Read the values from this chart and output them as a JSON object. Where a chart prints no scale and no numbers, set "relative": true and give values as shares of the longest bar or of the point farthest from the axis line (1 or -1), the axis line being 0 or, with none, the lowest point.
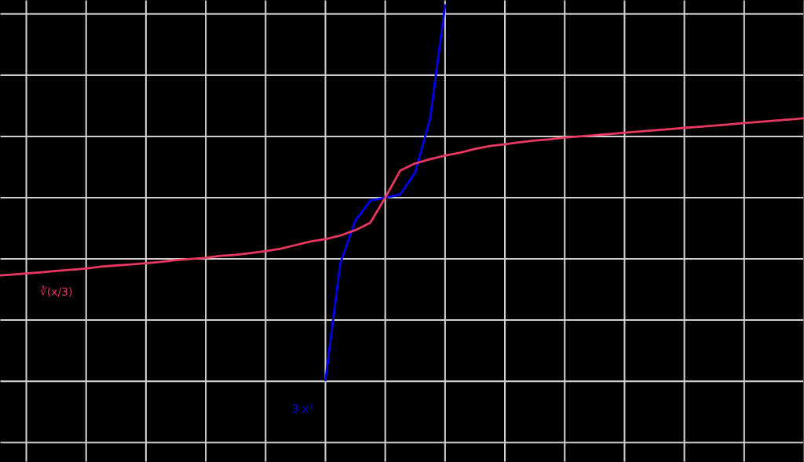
{
  "chart_data": {
    "type": "line",
    "relative": true,
    "categories": [
      null,
      null,
      null,
      null,
      null,
      null,
      null,
      null,
      null,
      null,
      null,
      null,
      null,
      null,
      null,
      null,
      null,
      null,
      null,
      null,
      null,
      null,
      null,
      null,
      null,
      null,
      null,
      null,
      null,
      null,
      null,
      null,
      null,
      null,
      null,
      null,
      null,
      null,
      null,
      null,
      null,
      null,
      null,
      null,
      null,
      null,
      null,
      null,
      null,
      null,
      null,
      null,
      null,
      null,
      null
    ],
    "series": [
      {
        "color": "#0000ee",
        "values": [
          null,
          null,
          null,
          null,
          null,
          null,
          null,
          null,
          null,
          null,
          null,
          null,
          null,
          null,
          null,
          null,
          null,
          null,
          null,
          null,
          null,
          null,
          -0.95,
          -0.34,
          -0.12,
          -0.016,
          0,
          0.016,
          0.13,
          0.41,
          1,
          null,
          null,
          null,
          null,
          null,
          null,
          null,
          null,
          null,
          null,
          null,
          null,
          null,
          null,
          null,
          null,
          null,
          null,
          null,
          null,
          null,
          null,
          null,
          null
        ]
      },
      {
        "color": "#e8385f",
        "values": [
          -0.406,
          -0.4,
          -0.394,
          -0.388,
          -0.381,
          -0.375,
          -0.369,
          -0.359,
          -0.353,
          -0.347,
          -0.341,
          -0.334,
          -0.325,
          -0.319,
          -0.313,
          -0.303,
          -0.297,
          -0.288,
          -0.278,
          -0.266,
          -0.247,
          -0.228,
          -0.216,
          -0.197,
          -0.169,
          -0.131,
          0,
          0.141,
          0.178,
          0.2,
          0.219,
          0.234,
          0.253,
          0.269,
          0.278,
          0.288,
          0.297,
          0.303,
          0.313,
          0.319,
          0.325,
          0.331,
          0.338,
          0.344,
          0.35,
          0.356,
          0.363,
          0.369,
          0.375,
          0.381,
          0.388,
          0.394,
          0.4,
          0.406,
          0.413
        ]
      }
    ],
    "annotations": [
      "∛(x/3)",
      "3 x³"
    ],
    "grid": true,
    "marker": "none",
    "line_style": "solid"
  }
}
